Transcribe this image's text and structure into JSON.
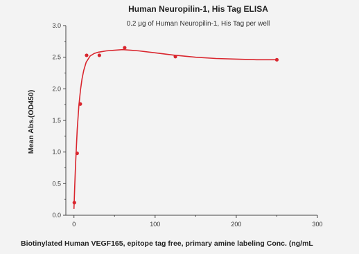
{
  "chart_data": {
    "type": "scatter",
    "title": "Human Neuropilin-1, His Tag ELISA",
    "subtitle": "0.2 μg of Human Neuropilin-1, His Tag per well",
    "xlabel": "Biotinylated Human VEGF165, epitope tag free, primary amine labeling Conc. (ng/mL",
    "ylabel": "Mean Abs.(OD450)",
    "xlim": [
      -10,
      300
    ],
    "ylim": [
      0.0,
      3.0
    ],
    "x_ticks": [
      0,
      100,
      200,
      300
    ],
    "y_ticks": [
      0.0,
      0.5,
      1.0,
      1.5,
      2.0,
      2.5,
      3.0
    ],
    "x_tick_labels": [
      "0",
      "100",
      "200",
      "300"
    ],
    "y_tick_labels": [
      "0.0",
      "0.5",
      "1.0",
      "1.5",
      "2.0",
      "2.5",
      "3.0"
    ],
    "grid": false,
    "series": [
      {
        "color": "#d9262e",
        "x": [
          0.49,
          3.9,
          7.8,
          15.6,
          31.3,
          62.5,
          125,
          250
        ],
        "y": [
          0.2,
          0.98,
          1.76,
          2.53,
          2.53,
          2.65,
          2.51,
          2.46
        ],
        "fit_curve": {
          "x": [
            0,
            1,
            2,
            4,
            6,
            8,
            10,
            12,
            15,
            20,
            25,
            30,
            40,
            50,
            60,
            70,
            80,
            100,
            125,
            150,
            175,
            200,
            225,
            250
          ],
          "y": [
            0.1,
            0.48,
            0.82,
            1.35,
            1.72,
            1.98,
            2.16,
            2.29,
            2.42,
            2.52,
            2.56,
            2.58,
            2.6,
            2.61,
            2.62,
            2.61,
            2.6,
            2.57,
            2.53,
            2.5,
            2.48,
            2.47,
            2.46,
            2.46
          ]
        }
      }
    ]
  }
}
